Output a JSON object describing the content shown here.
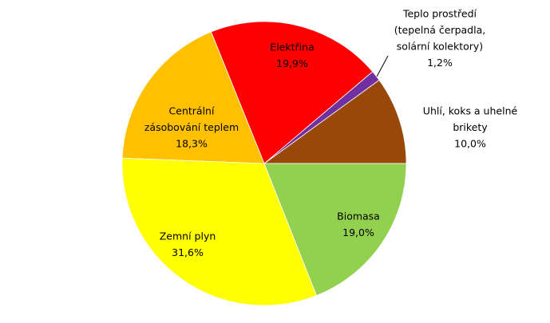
{
  "chart_data": {
    "type": "pie",
    "categories": [
      [
        "Uhlí, koks a uhelné",
        "brikety"
      ],
      [
        "Teplo prostředí",
        "(tepelná čerpadla,",
        "solární kolektory)"
      ],
      [
        "Elektřina"
      ],
      [
        "Centrální",
        "zásobování teplem"
      ],
      [
        "Zemní plyn"
      ],
      [
        "Biomasa"
      ]
    ],
    "values": [
      10.0,
      1.2,
      19.9,
      18.3,
      31.6,
      19.0
    ],
    "value_labels": [
      "10,0%",
      "1,2%",
      "19,9%",
      "18,3%",
      "31,6%",
      "19,0%"
    ],
    "colors": [
      "#984807",
      "#7030a0",
      "#ff0000",
      "#ffc000",
      "#ffff00",
      "#92d050"
    ]
  }
}
